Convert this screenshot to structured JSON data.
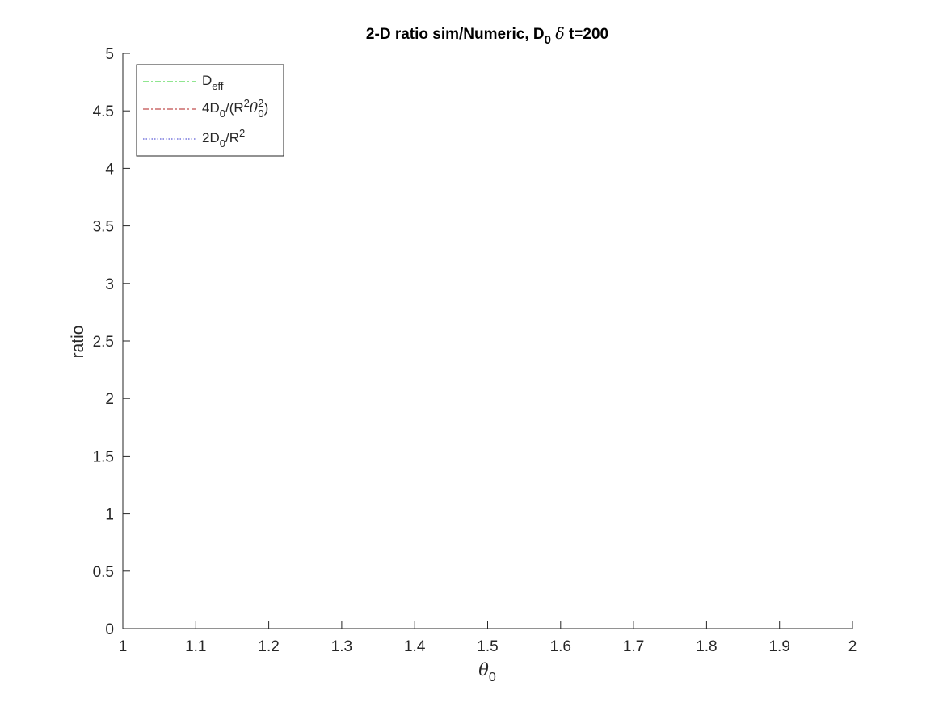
{
  "chart_data": {
    "type": "line",
    "title": {
      "prefix": "2-D ratio sim/Numeric, D",
      "sub": "0",
      "symbol": "δ",
      "suffix": "t=200"
    },
    "xlabel": {
      "symbol": "θ",
      "sub": "0"
    },
    "ylabel": "ratio",
    "xlim": [
      1,
      2
    ],
    "ylim": [
      0,
      5
    ],
    "x_ticks": [
      1,
      1.1,
      1.2,
      1.3,
      1.4,
      1.5,
      1.6,
      1.7,
      1.8,
      1.9,
      2
    ],
    "x_tick_labels": [
      "1",
      "1.1",
      "1.2",
      "1.3",
      "1.4",
      "1.5",
      "1.6",
      "1.7",
      "1.8",
      "1.9",
      "2"
    ],
    "y_ticks": [
      0,
      0.5,
      1,
      1.5,
      2,
      2.5,
      3,
      3.5,
      4,
      4.5,
      5
    ],
    "y_tick_labels": [
      "0",
      "0.5",
      "1",
      "1.5",
      "2",
      "2.5",
      "3",
      "3.5",
      "4",
      "4.5",
      "5"
    ],
    "grid": false,
    "legend_position": "top-left",
    "series": [
      {
        "legend": [
          [
            "D",
            "normal"
          ],
          [
            "eff",
            "sub"
          ]
        ],
        "color": "#22cc22",
        "dash": "dash-dot",
        "values": []
      },
      {
        "legend": [
          [
            "4D",
            "normal"
          ],
          [
            "0",
            "sub"
          ],
          [
            "/(R",
            "normal"
          ],
          [
            "2",
            "sup"
          ],
          [
            "θ",
            "sym"
          ],
          [
            "2",
            "supsub",
            "0"
          ],
          [
            ")",
            "normal"
          ]
        ],
        "color": "#b22222",
        "dash": "dash-dot",
        "values": []
      },
      {
        "legend": [
          [
            "2D",
            "normal"
          ],
          [
            "0",
            "sub"
          ],
          [
            "/R",
            "normal"
          ],
          [
            "2",
            "sup"
          ]
        ],
        "color": "#3333cc",
        "dash": "dotted",
        "values": []
      }
    ]
  }
}
